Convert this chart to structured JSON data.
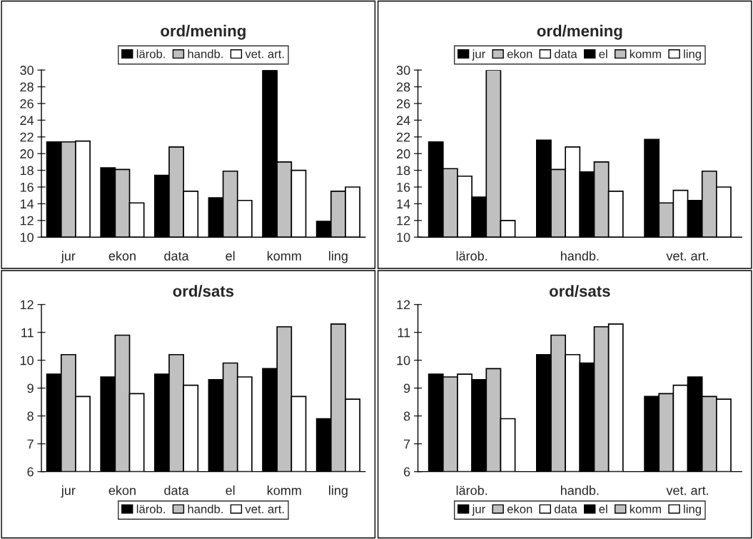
{
  "chart_data": [
    {
      "type": "bar",
      "title": "ord/mening",
      "categories": [
        "jur",
        "ekon",
        "data",
        "el",
        "komm",
        "ling"
      ],
      "ylim": [
        10,
        30
      ],
      "yticks": [
        10,
        12,
        14,
        16,
        18,
        20,
        22,
        24,
        26,
        28,
        30
      ],
      "legend": "top",
      "series": [
        {
          "name": "lärob.",
          "color": "#000000",
          "values": [
            21.4,
            18.3,
            17.4,
            14.7,
            30,
            11.9
          ]
        },
        {
          "name": "handb.",
          "color": "#c0c0c0",
          "values": [
            21.4,
            18.1,
            20.8,
            17.9,
            19.0,
            15.5
          ]
        },
        {
          "name": "vet. art.",
          "color": "#ffffff",
          "values": [
            21.5,
            14.1,
            15.5,
            14.4,
            18.0,
            16.0
          ]
        }
      ]
    },
    {
      "type": "bar",
      "title": "ord/mening",
      "categories": [
        "lärob.",
        "handb.",
        "vet. art."
      ],
      "ylim": [
        10,
        30
      ],
      "yticks": [
        10,
        12,
        14,
        16,
        18,
        20,
        22,
        24,
        26,
        28,
        30
      ],
      "legend": "top",
      "series": [
        {
          "name": "jur",
          "color": "#000000",
          "values": [
            21.4,
            21.6,
            21.7
          ]
        },
        {
          "name": "ekon",
          "color": "#c0c0c0",
          "values": [
            18.2,
            18.1,
            14.1
          ]
        },
        {
          "name": "data",
          "color": "#ffffff",
          "values": [
            17.3,
            20.8,
            15.6
          ]
        },
        {
          "name": "el",
          "color": "#000000",
          "values": [
            14.8,
            17.8,
            14.4
          ]
        },
        {
          "name": "komm",
          "color": "#c0c0c0",
          "values": [
            30,
            19.0,
            17.9
          ]
        },
        {
          "name": "ling",
          "color": "#ffffff",
          "values": [
            12.0,
            15.5,
            16.0
          ]
        }
      ]
    },
    {
      "type": "bar",
      "title": "ord/sats",
      "categories": [
        "jur",
        "ekon",
        "data",
        "el",
        "komm",
        "ling"
      ],
      "ylim": [
        6,
        12
      ],
      "yticks": [
        6,
        7,
        8,
        9,
        10,
        11,
        12
      ],
      "legend": "bottom",
      "series": [
        {
          "name": "lärob.",
          "color": "#000000",
          "values": [
            9.5,
            9.4,
            9.5,
            9.3,
            9.7,
            7.9
          ]
        },
        {
          "name": "handb.",
          "color": "#c0c0c0",
          "values": [
            10.2,
            10.9,
            10.2,
            9.9,
            11.2,
            11.3
          ]
        },
        {
          "name": "vet. art.",
          "color": "#ffffff",
          "values": [
            8.7,
            8.8,
            9.1,
            9.4,
            8.7,
            8.6
          ]
        }
      ]
    },
    {
      "type": "bar",
      "title": "ord/sats",
      "categories": [
        "lärob.",
        "handb.",
        "vet. art."
      ],
      "ylim": [
        6,
        12
      ],
      "yticks": [
        6,
        7,
        8,
        9,
        10,
        11,
        12
      ],
      "legend": "bottom",
      "series": [
        {
          "name": "jur",
          "color": "#000000",
          "values": [
            9.5,
            10.2,
            8.7
          ]
        },
        {
          "name": "ekon",
          "color": "#c0c0c0",
          "values": [
            9.4,
            10.9,
            8.8
          ]
        },
        {
          "name": "data",
          "color": "#ffffff",
          "values": [
            9.5,
            10.2,
            9.1
          ]
        },
        {
          "name": "el",
          "color": "#000000",
          "values": [
            9.3,
            9.9,
            9.4
          ]
        },
        {
          "name": "komm",
          "color": "#c0c0c0",
          "values": [
            9.7,
            11.2,
            8.7
          ]
        },
        {
          "name": "ling",
          "color": "#ffffff",
          "values": [
            7.9,
            11.3,
            8.6
          ]
        }
      ]
    }
  ]
}
